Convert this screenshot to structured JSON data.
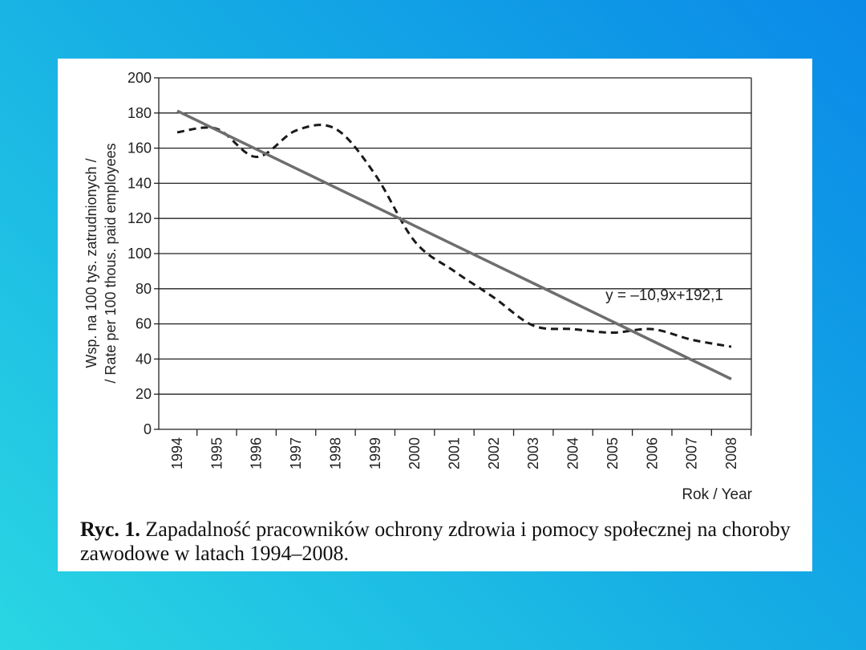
{
  "chart_data": {
    "type": "line",
    "x": [
      1994,
      1995,
      1996,
      1997,
      1998,
      1999,
      2000,
      2001,
      2002,
      2003,
      2004,
      2005,
      2006,
      2007,
      2008
    ],
    "series": [
      {
        "style": "dashed",
        "values": [
          169,
          171,
          155,
          170,
          171,
          145,
          107,
          90,
          75,
          59,
          57,
          55,
          57,
          51,
          47
        ]
      },
      {
        "style": "solid",
        "values": [
          181.2,
          170.3,
          159.4,
          148.5,
          137.6,
          126.7,
          115.8,
          104.9,
          94.0,
          83.1,
          72.2,
          61.3,
          50.4,
          39.5,
          28.6
        ]
      }
    ],
    "ylim": [
      0,
      200
    ],
    "yticks": [
      0,
      20,
      40,
      60,
      80,
      100,
      120,
      140,
      160,
      180,
      200
    ],
    "grid": "horizontal",
    "ylabel_line1": "Wsp. na 100 tys. zatrudnionych /",
    "ylabel_line2": "/ Rate per 100 thous. paid employees",
    "xlabel": "Rok / Year",
    "annotation": "y = –10,9x+192,1",
    "colors": {
      "dashed": "#1a1a1a",
      "trend": "#6e6e6e",
      "grid": "#222222"
    }
  },
  "caption": {
    "label": "Ryc. 1.",
    "text": " Zapadalność pracowników ochrony zdrowia i pomocy społecznej na choroby zawodowe w latach 1994–2008."
  }
}
